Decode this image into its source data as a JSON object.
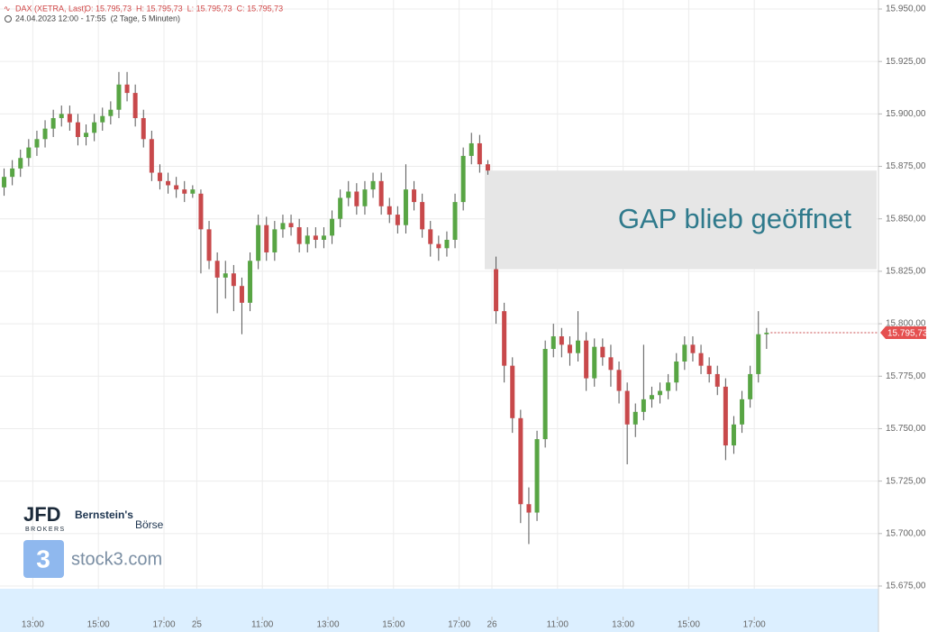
{
  "chart_data": {
    "type": "candlestick",
    "instrument": "DAX (XETRA, Last)",
    "ohlc_text": "O: 15.795,73  H: 15.795,73  L: 15.795,73  C: 15.795,73",
    "range_text": "24.04.2023 12:00 - 17:55  (2 Tage, 5 Minuten)",
    "annotation": "GAP blieb geöffnet",
    "gap": {
      "low": 15826,
      "high": 15873
    },
    "last_price": {
      "value": 15795.73,
      "label": "15.795,73"
    },
    "up_color": "#58a544",
    "down_color": "#c8494b",
    "grid": true,
    "ylim": [
      15675,
      15950
    ],
    "yticks": [
      {
        "value": 15675,
        "label": "15.675,00"
      },
      {
        "value": 15700,
        "label": "15.700,00"
      },
      {
        "value": 15725,
        "label": "15.725,00"
      },
      {
        "value": 15750,
        "label": "15.750,00"
      },
      {
        "value": 15775,
        "label": "15.775,00"
      },
      {
        "value": 15800,
        "label": "15.800,00"
      },
      {
        "value": 15825,
        "label": "15.825,00"
      },
      {
        "value": 15850,
        "label": "15.850,00"
      },
      {
        "value": 15875,
        "label": "15.875,00"
      },
      {
        "value": 15900,
        "label": "15.900,00"
      },
      {
        "value": 15925,
        "label": "15.925,00"
      },
      {
        "value": 15950,
        "label": "15.950,00"
      }
    ],
    "categories": [
      null,
      null,
      null,
      null,
      "13:00",
      null,
      null,
      null,
      null,
      null,
      null,
      null,
      "15:00",
      null,
      null,
      null,
      null,
      null,
      null,
      null,
      "17:00",
      null,
      null,
      null,
      "25",
      null,
      null,
      null,
      null,
      null,
      null,
      null,
      "11:00",
      null,
      null,
      null,
      null,
      null,
      null,
      null,
      "13:00",
      null,
      null,
      null,
      null,
      null,
      null,
      null,
      "15:00",
      null,
      null,
      null,
      null,
      null,
      null,
      null,
      "17:00",
      null,
      null,
      null,
      "26",
      null,
      null,
      null,
      null,
      null,
      null,
      null,
      "11:00",
      null,
      null,
      null,
      null,
      null,
      null,
      null,
      "13:00",
      null,
      null,
      null,
      null,
      null,
      null,
      null,
      "15:00",
      null,
      null,
      null,
      null,
      null,
      null,
      null,
      "17:00",
      null
    ],
    "open": [
      15865,
      15870,
      15874,
      15879,
      15884,
      15888,
      15893,
      15898,
      15900,
      15896,
      15889,
      15891,
      15896,
      15899,
      15902,
      15914,
      15910,
      15898,
      15888,
      15872,
      15868,
      15866,
      15864,
      15862,
      15862,
      15845,
      15830,
      15822,
      15824,
      15818,
      15810,
      15830,
      15847,
      15834,
      15845,
      15848,
      15846,
      15838,
      15842,
      15840,
      15842,
      15850,
      15860,
      15863,
      15856,
      15864,
      15868,
      15856,
      15852,
      15847,
      15864,
      15858,
      15845,
      15838,
      15836,
      15840,
      15858,
      15880,
      15886,
      15876,
      15826,
      15806,
      15780,
      15755,
      15714,
      15710,
      15745,
      15788,
      15794,
      15790,
      15786,
      15792,
      15774,
      15789,
      15784,
      15778,
      15768,
      15752,
      15758,
      15764,
      15766,
      15768,
      15772,
      15782,
      15790,
      15786,
      15780,
      15776,
      15770,
      15742,
      15752,
      15764,
      15776,
      15795
    ],
    "high": [
      15874,
      15878,
      15883,
      15888,
      15892,
      15897,
      15902,
      15904,
      15904,
      15900,
      15895,
      15900,
      15903,
      15906,
      15920,
      15920,
      15914,
      15902,
      15892,
      15876,
      15872,
      15870,
      15868,
      15866,
      15864,
      15849,
      15834,
      15830,
      15828,
      15822,
      15834,
      15852,
      15851,
      15849,
      15852,
      15852,
      15850,
      15846,
      15846,
      15846,
      15854,
      15864,
      15868,
      15867,
      15868,
      15872,
      15872,
      15860,
      15856,
      15876,
      15868,
      15862,
      15849,
      15842,
      15844,
      15862,
      15884,
      15891,
      15890,
      15878,
      15832,
      15810,
      15784,
      15759,
      15722,
      15749,
      15792,
      15800,
      15798,
      15794,
      15806,
      15796,
      15793,
      15793,
      15790,
      15782,
      15772,
      15762,
      15790,
      15770,
      15772,
      15776,
      15786,
      15794,
      15794,
      15790,
      15784,
      15780,
      15774,
      15756,
      15768,
      15780,
      15806,
      15798
    ],
    "low": [
      15861,
      15866,
      15870,
      15875,
      15880,
      15884,
      15889,
      15894,
      15892,
      15885,
      15885,
      15887,
      15892,
      15895,
      15898,
      15906,
      15894,
      15884,
      15868,
      15864,
      15862,
      15860,
      15858,
      15860,
      15824,
      15826,
      15805,
      15812,
      15806,
      15795,
      15806,
      15826,
      15830,
      15830,
      15841,
      15842,
      15834,
      15834,
      15836,
      15836,
      15838,
      15846,
      15856,
      15852,
      15852,
      15860,
      15852,
      15848,
      15843,
      15843,
      15854,
      15841,
      15832,
      15830,
      15832,
      15836,
      15854,
      15876,
      15872,
      15871,
      15800,
      15772,
      15748,
      15705,
      15695,
      15706,
      15741,
      15784,
      15784,
      15780,
      15782,
      15768,
      15770,
      15780,
      15770,
      15762,
      15733,
      15746,
      15754,
      15760,
      15762,
      15764,
      15768,
      15778,
      15782,
      15776,
      15772,
      15766,
      15735,
      15738,
      15748,
      15760,
      15772,
      15788
    ],
    "close": [
      15870,
      15874,
      15879,
      15884,
      15888,
      15893,
      15898,
      15900,
      15896,
      15889,
      15891,
      15896,
      15899,
      15902,
      15914,
      15910,
      15898,
      15888,
      15872,
      15868,
      15866,
      15864,
      15862,
      15864,
      15845,
      15830,
      15822,
      15824,
      15818,
      15810,
      15830,
      15847,
      15834,
      15845,
      15848,
      15846,
      15838,
      15842,
      15840,
      15842,
      15850,
      15860,
      15863,
      15856,
      15864,
      15868,
      15856,
      15852,
      15847,
      15864,
      15858,
      15845,
      15838,
      15836,
      15840,
      15858,
      15880,
      15886,
      15876,
      15873,
      15806,
      15780,
      15755,
      15714,
      15710,
      15745,
      15788,
      15794,
      15790,
      15786,
      15792,
      15774,
      15789,
      15784,
      15778,
      15768,
      15752,
      15758,
      15764,
      15766,
      15768,
      15772,
      15782,
      15790,
      15786,
      15780,
      15776,
      15770,
      15742,
      15752,
      15764,
      15776,
      15795,
      15795.73
    ]
  },
  "branding": {
    "jfd": "JFD",
    "jfd_sub": "BROKERS",
    "bernstein": "Bernstein's",
    "boerse": "Börse",
    "stock3": "stock3.com"
  }
}
